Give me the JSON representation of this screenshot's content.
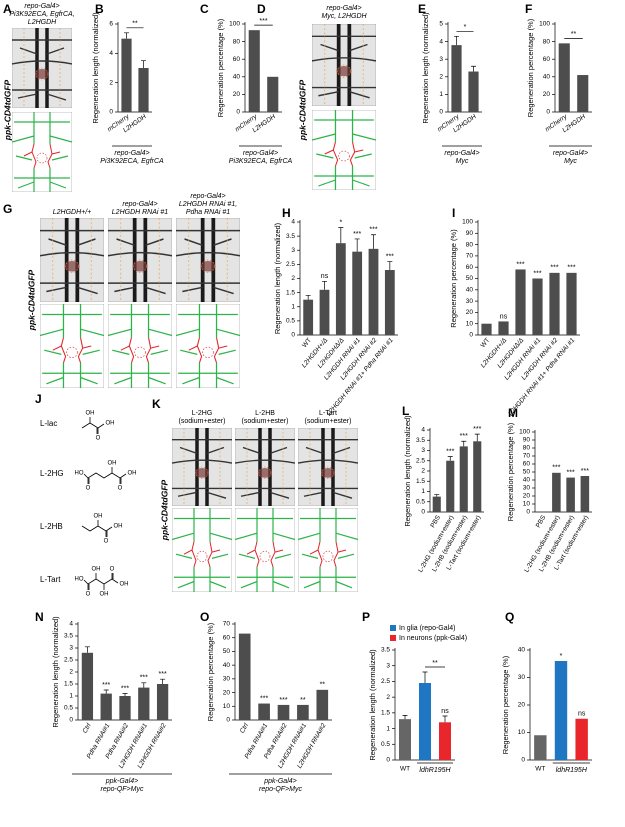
{
  "chart_data": [
    {
      "panel": "B",
      "type": "bar",
      "y_label": "Regeneration length (normalized)",
      "categories": [
        "mCherry",
        "L2HGDH"
      ],
      "values": [
        5.0,
        3.0
      ],
      "errors": [
        0.4,
        0.5
      ],
      "color": "#4d4d4d",
      "ylim": [
        0,
        6
      ],
      "yticks": [
        0,
        2,
        4,
        6
      ],
      "bracket_label": "**",
      "group_label": [
        "repo-Gal4>",
        "Pi3K92ECA, EgfrCA"
      ]
    },
    {
      "panel": "C",
      "type": "bar",
      "y_label": "Regeneration percentage (%)",
      "categories": [
        "mCherry",
        "L2HGDH"
      ],
      "values": [
        93,
        40
      ],
      "color": "#4d4d4d",
      "ylim": [
        0,
        100
      ],
      "yticks": [
        0,
        20,
        40,
        60,
        80,
        100
      ],
      "bracket_label": "***",
      "group_label": [
        "repo-Gal4>",
        "Pi3K92ECA, EgfrCA"
      ]
    },
    {
      "panel": "E",
      "type": "bar",
      "y_label": "Regeneration length (normalized)",
      "categories": [
        "mCherry",
        "L2HGDH"
      ],
      "values": [
        3.8,
        2.3
      ],
      "errors": [
        0.5,
        0.3
      ],
      "color": "#4d4d4d",
      "ylim": [
        0,
        5
      ],
      "yticks": [
        0,
        1,
        2,
        3,
        4,
        5
      ],
      "bracket_label": "*",
      "group_label": [
        "repo-Gal4>",
        "Myc"
      ]
    },
    {
      "panel": "F",
      "type": "bar",
      "y_label": "Regeneration percentage (%)",
      "categories": [
        "mCherry",
        "L2HGDH"
      ],
      "values": [
        78,
        42
      ],
      "color": "#4d4d4d",
      "ylim": [
        0,
        100
      ],
      "yticks": [
        0,
        20,
        40,
        60,
        80,
        100
      ],
      "bracket_label": "**",
      "group_label": [
        "repo-Gal4>",
        "Myc"
      ]
    },
    {
      "panel": "H",
      "type": "bar",
      "y_label": "Regeneration length (normalized)",
      "categories": [
        "WT",
        "L2HGDH+/Δ",
        "L2HGDHΔ/Δ",
        "L2HGDH RNAi #1",
        "L2HGDH RNAi #2",
        "L2HGDH RNAi #1+ Pdha RNAi #1"
      ],
      "values": [
        1.25,
        1.6,
        3.25,
        2.95,
        3.05,
        2.3
      ],
      "errors": [
        0.15,
        0.3,
        0.55,
        0.45,
        0.5,
        0.3
      ],
      "significance": [
        null,
        "ns",
        "*",
        "***",
        "***",
        "***"
      ],
      "color": "#4d4d4d",
      "ylim": [
        0,
        4
      ],
      "yticks": [
        0,
        0.5,
        1,
        1.5,
        2,
        2.5,
        3,
        3.5,
        4
      ]
    },
    {
      "panel": "I",
      "type": "bar",
      "y_label": "Regeneration percentage (%)",
      "categories": [
        "WT",
        "L2HGDH+/Δ",
        "L2HGDHΔ/Δ",
        "L2HGDH RNAi #1",
        "L2HGDH RNAi #2",
        "L2HGDH RNAi #1+ Pdha RNAi #1"
      ],
      "values": [
        10,
        12,
        58,
        50,
        55,
        55
      ],
      "significance": [
        null,
        "ns",
        "***",
        "***",
        "***",
        "***"
      ],
      "color": "#4d4d4d",
      "ylim": [
        0,
        100
      ],
      "yticks": [
        0,
        10,
        20,
        30,
        40,
        50,
        60,
        70,
        80,
        90,
        100
      ]
    },
    {
      "panel": "L",
      "type": "bar",
      "y_label": "Regeneration length (normalized)",
      "categories": [
        "PBS",
        "L-2HG (sodium+ester)",
        "L-2HB (sodium+ester)",
        "L-Tart (sodium+ester)"
      ],
      "values": [
        0.75,
        2.5,
        3.2,
        3.45
      ],
      "errors": [
        0.1,
        0.2,
        0.25,
        0.35
      ],
      "significance": [
        null,
        "***",
        "***",
        "***"
      ],
      "color": "#4d4d4d",
      "ylim": [
        0,
        4
      ],
      "yticks": [
        0,
        0.5,
        1,
        1.5,
        2,
        2.5,
        3,
        3.5,
        4
      ]
    },
    {
      "panel": "M",
      "type": "bar",
      "y_label": "Regeneration percentage (%)",
      "categories": [
        "PBS",
        "L-2HG (sodium+ester)",
        "L-2HB (sodium+ester)",
        "L-Tart (sodium+ester)"
      ],
      "values": [
        0,
        49,
        43,
        45
      ],
      "significance": [
        null,
        "***",
        "***",
        "***"
      ],
      "color": "#4d4d4d",
      "ylim": [
        0,
        100
      ],
      "yticks": [
        0,
        10,
        20,
        30,
        40,
        50,
        60,
        70,
        80,
        90,
        100
      ]
    },
    {
      "panel": "N",
      "type": "bar",
      "y_label": "Regeneration length (normalized)",
      "categories": [
        "Ctrl",
        "Pdha RNAi#1",
        "Pdha RNAi#2",
        "L2HGDH RNAi#1",
        "L2HGDH RNAi#2"
      ],
      "values": [
        2.8,
        1.1,
        1.0,
        1.35,
        1.5
      ],
      "errors": [
        0.25,
        0.15,
        0.1,
        0.2,
        0.2
      ],
      "significance": [
        null,
        "***",
        "***",
        "***",
        "***"
      ],
      "color": "#4d4d4d",
      "ylim": [
        0,
        4
      ],
      "yticks": [
        0,
        0.5,
        1,
        1.5,
        2,
        2.5,
        3,
        3.5,
        4
      ],
      "group_label": [
        "ppk-Gal4>",
        "repo-QF>Myc"
      ]
    },
    {
      "panel": "O",
      "type": "bar",
      "y_label": "Regeneration percentage (%)",
      "categories": [
        "Ctrl",
        "Pdha RNAi#1",
        "Pdha RNAi#2",
        "L2HGDH RNAi#1",
        "L2HGDH RNAi#2"
      ],
      "values": [
        63,
        12,
        11,
        11,
        22
      ],
      "significance": [
        null,
        "***",
        "***",
        "**",
        "**"
      ],
      "color": "#4d4d4d",
      "ylim": [
        0,
        70
      ],
      "yticks": [
        0,
        10,
        20,
        30,
        40,
        50,
        60,
        70
      ],
      "group_label": [
        "ppk-Gal4>",
        "repo-QF>Myc"
      ]
    },
    {
      "panel": "P",
      "type": "bar",
      "y_label": "Regeneration length (normalized)",
      "categories": [
        "WT",
        null,
        null
      ],
      "values": [
        1.3,
        2.45,
        1.2
      ],
      "errors": [
        0.12,
        0.35,
        0.2
      ],
      "significance": [
        null,
        null,
        "ns"
      ],
      "colors": [
        "#666666",
        "#1f77c4",
        "#e8262b"
      ],
      "ylim": [
        0,
        3.5
      ],
      "yticks": [
        0,
        0.5,
        1,
        1.5,
        2,
        2.5,
        3,
        3.5
      ],
      "bracket_label": "**",
      "group_label": [
        "ldhR195H"
      ],
      "legend": [
        {
          "name": "In glia (repo-Gal4)",
          "color": "#1f77c4"
        },
        {
          "name": "In neurons (ppk-Gal4)",
          "color": "#e8262b"
        }
      ]
    },
    {
      "panel": "Q",
      "type": "bar",
      "y_label": "Regeneration percentage (%)",
      "categories": [
        "WT",
        null,
        null
      ],
      "values": [
        9,
        36,
        15
      ],
      "significance": [
        null,
        "*",
        "ns"
      ],
      "colors": [
        "#666666",
        "#1f77c4",
        "#e8262b"
      ],
      "ylim": [
        0,
        40
      ],
      "yticks": [
        0,
        10,
        20,
        30,
        40
      ],
      "group_label": [
        "ldhR195H"
      ]
    }
  ],
  "images": [
    {
      "panel": "A",
      "reporter": "ppk-CD4tdGFP",
      "columns": [
        [
          "repo-Gal4>",
          "Pi3K92ECA, EgfrCA,",
          "L2HGDH"
        ]
      ]
    },
    {
      "panel": "D",
      "reporter": "ppk-CD4tdGFP",
      "columns": [
        [
          "repo-Gal4>",
          "Myc, L2HGDH"
        ]
      ]
    },
    {
      "panel": "G",
      "reporter": "ppk-CD4tdGFP",
      "columns": [
        [
          "L2HGDH+/+"
        ],
        [
          "repo-Gal4>",
          "L2HGDH RNAi #1"
        ],
        [
          "repo-Gal4>",
          "L2HGDH RNAi #1,",
          "Pdha RNAi #1"
        ]
      ]
    },
    {
      "panel": "K",
      "reporter": "ppk-CD4tdGFP",
      "columns": [
        [
          "L-2HG",
          "(sodium+ester)"
        ],
        [
          "L-2HB",
          "(sodium+ester)"
        ],
        [
          "L-Tart",
          "(sodium+ester)"
        ]
      ]
    }
  ],
  "structures": {
    "panel": "J",
    "compounds": [
      {
        "name": "L-lac",
        "atoms": [
          "OH",
          "O",
          "OH"
        ]
      },
      {
        "name": "L-2HG",
        "atoms": [
          "HO",
          "O",
          "OH",
          "O",
          "OH"
        ]
      },
      {
        "name": "L-2HB",
        "atoms": [
          "OH",
          "O",
          "OH"
        ]
      },
      {
        "name": "L-Tart",
        "atoms": [
          "HO",
          "O",
          "OH",
          "OH",
          "O",
          "OH"
        ]
      }
    ]
  }
}
